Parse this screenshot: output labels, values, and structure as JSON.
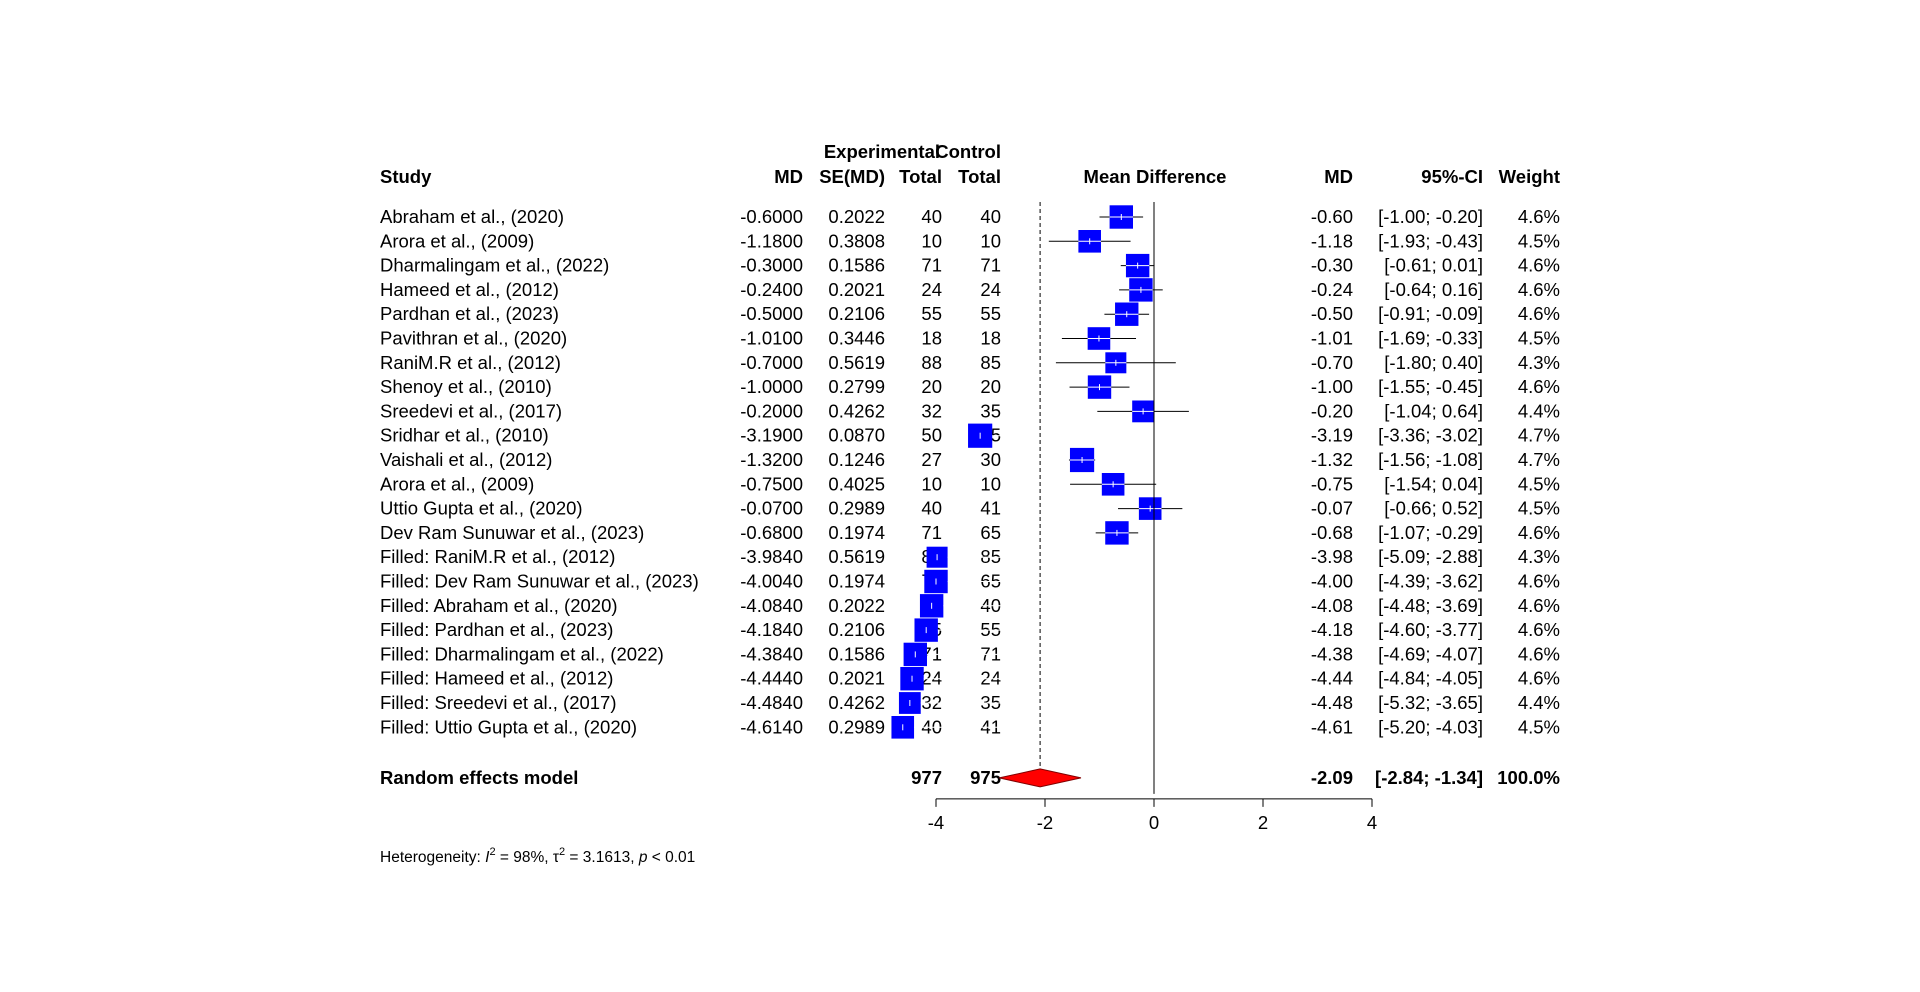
{
  "chart_data": {
    "type": "forest",
    "headers": {
      "study": "Study",
      "md": "MD",
      "se": "SE(MD)",
      "experimental_top": "Experimental",
      "experimental_bottom": "Total",
      "control_top": "Control",
      "control_bottom": "Total",
      "plot_title": "Mean Difference",
      "right_md": "MD",
      "ci": "95%-CI",
      "weight": "Weight"
    },
    "studies": [
      {
        "study": "Abraham et al., (2020)",
        "md": "-0.6000",
        "se": "0.2022",
        "exp_total": "40",
        "ctrl_total": "40",
        "md_right": "-0.60",
        "ci": "[-1.00; -0.20]",
        "weight": "4.6%",
        "est": -0.6,
        "lower": -1.0,
        "upper": -0.2,
        "w": 4.6
      },
      {
        "study": "Arora et al., (2009)",
        "md": "-1.1800",
        "se": "0.3808",
        "exp_total": "10",
        "ctrl_total": "10",
        "md_right": "-1.18",
        "ci": "[-1.93; -0.43]",
        "weight": "4.5%",
        "est": -1.18,
        "lower": -1.93,
        "upper": -0.43,
        "w": 4.5
      },
      {
        "study": "Dharmalingam et al., (2022)",
        "md": "-0.3000",
        "se": "0.1586",
        "exp_total": "71",
        "ctrl_total": "71",
        "md_right": "-0.30",
        "ci": "[-0.61;  0.01]",
        "weight": "4.6%",
        "est": -0.3,
        "lower": -0.61,
        "upper": 0.01,
        "w": 4.6
      },
      {
        "study": "Hameed et al., (2012)",
        "md": "-0.2400",
        "se": "0.2021",
        "exp_total": "24",
        "ctrl_total": "24",
        "md_right": "-0.24",
        "ci": "[-0.64;  0.16]",
        "weight": "4.6%",
        "est": -0.24,
        "lower": -0.64,
        "upper": 0.16,
        "w": 4.6
      },
      {
        "study": "Pardhan et al., (2023)",
        "md": "-0.5000",
        "se": "0.2106",
        "exp_total": "55",
        "ctrl_total": "55",
        "md_right": "-0.50",
        "ci": "[-0.91; -0.09]",
        "weight": "4.6%",
        "est": -0.5,
        "lower": -0.91,
        "upper": -0.09,
        "w": 4.6
      },
      {
        "study": "Pavithran et al., (2020)",
        "md": "-1.0100",
        "se": "0.3446",
        "exp_total": "18",
        "ctrl_total": "18",
        "md_right": "-1.01",
        "ci": "[-1.69; -0.33]",
        "weight": "4.5%",
        "est": -1.01,
        "lower": -1.69,
        "upper": -0.33,
        "w": 4.5
      },
      {
        "study": "RaniM.R et al., (2012)",
        "md": "-0.7000",
        "se": "0.5619",
        "exp_total": "88",
        "ctrl_total": "85",
        "md_right": "-0.70",
        "ci": "[-1.80;  0.40]",
        "weight": "4.3%",
        "est": -0.7,
        "lower": -1.8,
        "upper": 0.4,
        "w": 4.3
      },
      {
        "study": "Shenoy et al., (2010)",
        "md": "-1.0000",
        "se": "0.2799",
        "exp_total": "20",
        "ctrl_total": "20",
        "md_right": "-1.00",
        "ci": "[-1.55; -0.45]",
        "weight": "4.6%",
        "est": -1.0,
        "lower": -1.55,
        "upper": -0.45,
        "w": 4.6
      },
      {
        "study": "Sreedevi et al., (2017)",
        "md": "-0.2000",
        "se": "0.4262",
        "exp_total": "32",
        "ctrl_total": "35",
        "md_right": "-0.20",
        "ci": "[-1.04;  0.64]",
        "weight": "4.4%",
        "est": -0.2,
        "lower": -1.04,
        "upper": 0.64,
        "w": 4.4
      },
      {
        "study": "Sridhar et al., (2010)",
        "md": "-3.1900",
        "se": "0.0870",
        "exp_total": "50",
        "ctrl_total": "55",
        "md_right": "-3.19",
        "ci": "[-3.36; -3.02]",
        "weight": "4.7%",
        "est": -3.19,
        "lower": -3.36,
        "upper": -3.02,
        "w": 4.7
      },
      {
        "study": "Vaishali et al., (2012)",
        "md": "-1.3200",
        "se": "0.1246",
        "exp_total": "27",
        "ctrl_total": "30",
        "md_right": "-1.32",
        "ci": "[-1.56; -1.08]",
        "weight": "4.7%",
        "est": -1.32,
        "lower": -1.56,
        "upper": -1.08,
        "w": 4.7
      },
      {
        "study": "Arora et al., (2009)",
        "md": "-0.7500",
        "se": "0.4025",
        "exp_total": "10",
        "ctrl_total": "10",
        "md_right": "-0.75",
        "ci": "[-1.54;  0.04]",
        "weight": "4.5%",
        "est": -0.75,
        "lower": -1.54,
        "upper": 0.04,
        "w": 4.5
      },
      {
        "study": "Uttio Gupta et al., (2020)",
        "md": "-0.0700",
        "se": "0.2989",
        "exp_total": "40",
        "ctrl_total": "41",
        "md_right": "-0.07",
        "ci": "[-0.66;  0.52]",
        "weight": "4.5%",
        "est": -0.07,
        "lower": -0.66,
        "upper": 0.52,
        "w": 4.5
      },
      {
        "study": "Dev Ram Sunuwar et al., (2023)",
        "md": "-0.6800",
        "se": "0.1974",
        "exp_total": "71",
        "ctrl_total": "65",
        "md_right": "-0.68",
        "ci": "[-1.07; -0.29]",
        "weight": "4.6%",
        "est": -0.68,
        "lower": -1.07,
        "upper": -0.29,
        "w": 4.6
      },
      {
        "study": "Filled: RaniM.R et al., (2012)",
        "md": "-3.9840",
        "se": "0.5619",
        "exp_total": "88",
        "ctrl_total": "85",
        "md_right": "-3.98",
        "ci": "[-5.09; -2.88]",
        "weight": "4.3%",
        "est": -3.98,
        "lower": -5.09,
        "upper": -2.88,
        "w": 4.3
      },
      {
        "study": "Filled: Dev Ram Sunuwar et al., (2023)",
        "md": "-4.0040",
        "se": "0.1974",
        "exp_total": "71",
        "ctrl_total": "65",
        "md_right": "-4.00",
        "ci": "[-4.39; -3.62]",
        "weight": "4.6%",
        "est": -4.0,
        "lower": -4.39,
        "upper": -3.62,
        "w": 4.6
      },
      {
        "study": "Filled: Abraham et al., (2020)",
        "md": "-4.0840",
        "se": "0.2022",
        "exp_total": "40",
        "ctrl_total": "40",
        "md_right": "-4.08",
        "ci": "[-4.48; -3.69]",
        "weight": "4.6%",
        "est": -4.08,
        "lower": -4.48,
        "upper": -3.69,
        "w": 4.6
      },
      {
        "study": "Filled: Pardhan et al., (2023)",
        "md": "-4.1840",
        "se": "0.2106",
        "exp_total": "55",
        "ctrl_total": "55",
        "md_right": "-4.18",
        "ci": "[-4.60; -3.77]",
        "weight": "4.6%",
        "est": -4.18,
        "lower": -4.6,
        "upper": -3.77,
        "w": 4.6
      },
      {
        "study": "Filled: Dharmalingam et al., (2022)",
        "md": "-4.3840",
        "se": "0.1586",
        "exp_total": "71",
        "ctrl_total": "71",
        "md_right": "-4.38",
        "ci": "[-4.69; -4.07]",
        "weight": "4.6%",
        "est": -4.38,
        "lower": -4.69,
        "upper": -4.07,
        "w": 4.6
      },
      {
        "study": "Filled: Hameed et al., (2012)",
        "md": "-4.4440",
        "se": "0.2021",
        "exp_total": "24",
        "ctrl_total": "24",
        "md_right": "-4.44",
        "ci": "[-4.84; -4.05]",
        "weight": "4.6%",
        "est": -4.44,
        "lower": -4.84,
        "upper": -4.05,
        "w": 4.6
      },
      {
        "study": "Filled: Sreedevi et al., (2017)",
        "md": "-4.4840",
        "se": "0.4262",
        "exp_total": "32",
        "ctrl_total": "35",
        "md_right": "-4.48",
        "ci": "[-5.32; -3.65]",
        "weight": "4.4%",
        "est": -4.48,
        "lower": -5.32,
        "upper": -3.65,
        "w": 4.4
      },
      {
        "study": "Filled: Uttio Gupta et al., (2020)",
        "md": "-4.6140",
        "se": "0.2989",
        "exp_total": "40",
        "ctrl_total": "41",
        "md_right": "-4.61",
        "ci": "[-5.20; -4.03]",
        "weight": "4.5%",
        "est": -4.61,
        "lower": -5.2,
        "upper": -4.03,
        "w": 4.5
      }
    ],
    "pooled": {
      "label": "Random effects model",
      "exp_total": "977",
      "ctrl_total": "975",
      "md_right": "-2.09",
      "ci": "[-2.84; -1.34]",
      "weight": "100.0%",
      "est": -2.09,
      "lower": -2.84,
      "upper": -1.34
    },
    "heterogeneity": {
      "prefix": "Heterogeneity: ",
      "i2_symbol": "I",
      "i2_sup": "2",
      "i2_value": " = 98%, ",
      "tau2_symbol": "τ",
      "tau2_sup": "2",
      "tau2_value": " = 3.1613, ",
      "p_symbol": "p",
      "p_value": " < 0.01"
    },
    "xaxis": {
      "ticks": [
        -4,
        -2,
        0,
        2,
        4
      ],
      "tick_labels": [
        "-4",
        "-2",
        "0",
        "2",
        "4"
      ],
      "range": [
        -4,
        4
      ],
      "reference_line": 0
    },
    "colors": {
      "square": "#0000ff",
      "diamond": "#ff0000",
      "lines": "#000000",
      "ci_inside": "#ffffff"
    }
  }
}
